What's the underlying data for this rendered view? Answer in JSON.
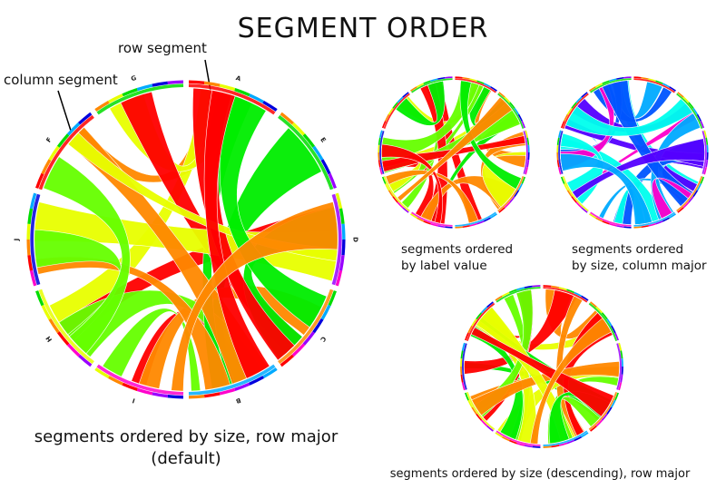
{
  "title": "SEGMENT ORDER",
  "annotations": {
    "row_segment": "row segment",
    "column_segment": "column segment"
  },
  "captions": {
    "main_line1": "segments ordered by size, row major",
    "main_line2": "(default)",
    "label_line1": "segments ordered",
    "label_line2": "by label value",
    "colmajor_line1": "segments ordered",
    "colmajor_line2": "by size, column major",
    "descending": "segments ordered by size (descending), row major"
  },
  "diagrams": [
    {
      "id": "size-row-major",
      "segment_labels": [
        "A",
        "E",
        "D",
        "C",
        "B",
        "I",
        "H",
        "J",
        "F",
        "G"
      ],
      "ribbon_colors": [
        "#ff0000",
        "#ff8800",
        "#e8ff00",
        "#66ff00",
        "#00ee00"
      ]
    },
    {
      "id": "label-value",
      "segment_labels": [],
      "ribbon_colors": [
        "#ff0000",
        "#ff8800",
        "#e8ff00",
        "#66ff00",
        "#00ee00"
      ]
    },
    {
      "id": "size-column-major",
      "segment_labels": [],
      "ribbon_colors": [
        "#00ffee",
        "#00aaff",
        "#0055ff",
        "#5500ff",
        "#ff00cc"
      ]
    },
    {
      "id": "size-descending",
      "segment_labels": [],
      "ribbon_colors": [
        "#ff0000",
        "#ff8800",
        "#e8ff00",
        "#66ff00",
        "#00ee00"
      ]
    }
  ]
}
